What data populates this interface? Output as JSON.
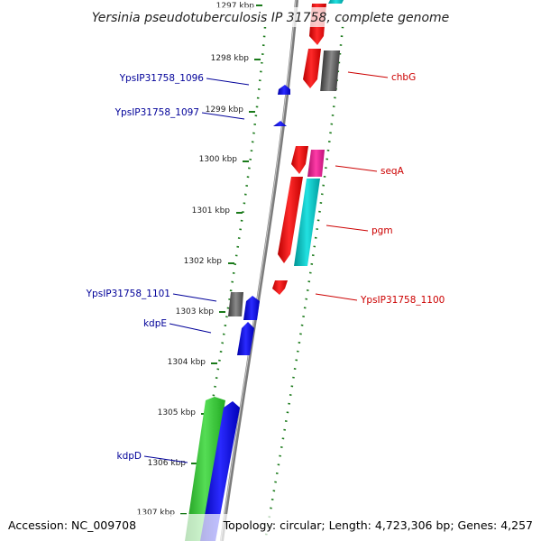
{
  "title": "Yersinia pseudotuberculosis IP 31758, complete genome",
  "footer": {
    "accession": "Accession: NC_009708",
    "topology": "Topology: circular; Length: 4,723,306 bp; Genes: 4,257"
  },
  "kbp_labels": [
    "1297 kbp",
    "1298 kbp",
    "1299 kbp",
    "1300 kbp",
    "1301 kbp",
    "1302 kbp",
    "1303 kbp",
    "1304 kbp",
    "1305 kbp",
    "1306 kbp",
    "1307 kbp"
  ],
  "gene_labels": {
    "chbG": "chbG",
    "seqA": "seqA",
    "pgm": "pgm",
    "YpsIP31758_1100": "YpsIP31758_1100",
    "YpsIP31758_1096": "YpsIP31758_1096",
    "YpsIP31758_1097": "YpsIP31758_1097",
    "YpsIP31758_1101": "YpsIP31758_1101",
    "kdpE": "kdpE",
    "kdpD": "kdpD"
  },
  "colors": {
    "red": "#ff0000",
    "gray": "#666666",
    "pink": "#ff1493",
    "cyan": "#00c8c8",
    "blue": "#0000ff",
    "green": "#33cc33",
    "navy_label": "#000099",
    "red_label": "#cc0000",
    "tick_green": "#117711",
    "backbone": "#888888"
  }
}
